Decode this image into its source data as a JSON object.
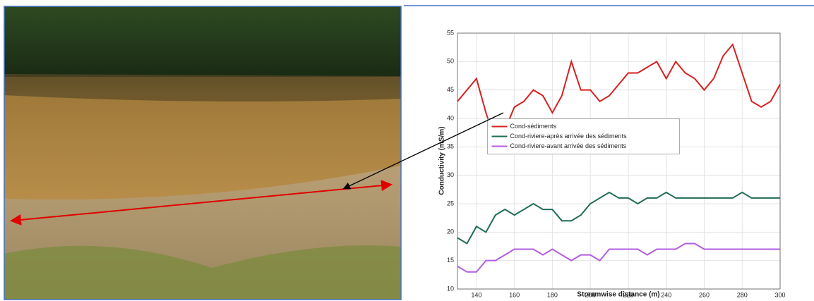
{
  "chart_data": {
    "type": "line",
    "x_label": "Streamwise distance (m)",
    "y_label": "Conductivity (mS/m)",
    "x": [
      130,
      135,
      140,
      145,
      150,
      155,
      160,
      165,
      170,
      175,
      180,
      185,
      190,
      195,
      200,
      205,
      210,
      215,
      220,
      225,
      230,
      235,
      240,
      245,
      250,
      255,
      260,
      265,
      270,
      275,
      280,
      285,
      290,
      295,
      300
    ],
    "series": [
      {
        "name": "Cond-sédiments",
        "color": "#d62020",
        "values": [
          43,
          45,
          47,
          41,
          36,
          38,
          42,
          43,
          45,
          44,
          41,
          44,
          50,
          45,
          45,
          43,
          44,
          46,
          48,
          48,
          49,
          50,
          47,
          50,
          48,
          47,
          45,
          47,
          51,
          53,
          48,
          43,
          42,
          43,
          46
        ]
      },
      {
        "name": "Cond-riviere-après arrivée des sédiments",
        "color": "#1e6b55",
        "values": [
          19,
          18,
          21,
          20,
          23,
          24,
          23,
          24,
          25,
          24,
          24,
          22,
          22,
          23,
          25,
          26,
          27,
          26,
          26,
          25,
          26,
          26,
          27,
          26,
          26,
          26,
          26,
          26,
          26,
          26,
          27,
          26,
          26,
          26,
          26
        ]
      },
      {
        "name": "Cond-riviere-avant arrivée des sédiments",
        "color": "#b25de0",
        "values": [
          14,
          13,
          13,
          15,
          15,
          16,
          17,
          17,
          17,
          16,
          17,
          16,
          15,
          16,
          16,
          15,
          17,
          17,
          17,
          17,
          16,
          17,
          17,
          17,
          18,
          18,
          17,
          17,
          17,
          17,
          17,
          17,
          17,
          17,
          17
        ]
      }
    ],
    "xlim": [
      130,
      300
    ],
    "xticks": [
      140,
      160,
      180,
      200,
      220,
      240,
      260,
      280,
      300
    ],
    "ylim": [
      10,
      55
    ],
    "yticks": [
      10,
      15,
      20,
      25,
      30,
      35,
      40,
      45,
      50,
      55
    ],
    "grid": true,
    "legend_position": "center"
  }
}
